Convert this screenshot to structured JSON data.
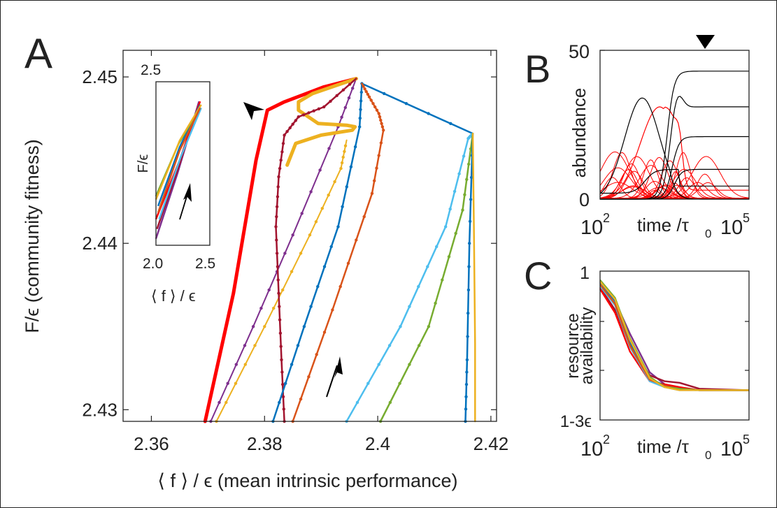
{
  "panel_labels": {
    "a": "A",
    "b": "B",
    "c": "C"
  },
  "chart_data": [
    {
      "panel": "A",
      "type": "line",
      "xlabel": "⟨ f ⟩ / ϵ (mean intrinsic performance)",
      "ylabel": "F/ϵ (community fitness)",
      "xlim": [
        2.355,
        2.421
      ],
      "ylim": [
        2.4293,
        2.4516
      ],
      "xticks": [
        2.36,
        2.38,
        2.4,
        2.42
      ],
      "xtick_labels": [
        "2.36",
        "2.38",
        "2.4",
        "2.42"
      ],
      "yticks": [
        2.43,
        2.44,
        2.45
      ],
      "ytick_labels": [
        "2.43",
        "2.44",
        "2.45"
      ],
      "grid": false,
      "annotations": [
        "arrowhead marker near the red trajectory bend",
        "arrow pointing up-right along trajectories"
      ],
      "series": [
        {
          "color": "#ff0000",
          "width": 5,
          "markers": false,
          "x": [
            2.3695,
            2.3745,
            2.3785,
            2.3805,
            2.3835,
            2.3905,
            2.3962
          ],
          "y": [
            2.4293,
            2.437,
            2.445,
            2.448,
            2.4485,
            2.4494,
            2.4499
          ]
        },
        {
          "color": "#7e2f8e",
          "width": 2,
          "markers": true,
          "x": [
            2.3705,
            2.378,
            2.385,
            2.393,
            2.3962
          ],
          "y": [
            2.4293,
            2.435,
            2.4405,
            2.447,
            2.4499
          ]
        },
        {
          "color": "#edb120",
          "width": 2,
          "markers": true,
          "x": [
            2.3715,
            2.38,
            2.388,
            2.3935,
            2.3945
          ],
          "y": [
            2.4293,
            2.435,
            2.4405,
            2.4445,
            2.4462
          ]
        },
        {
          "color": "#edb120",
          "width": 5,
          "markers": false,
          "x": [
            2.384,
            2.3855,
            2.39,
            2.3955,
            2.396,
            2.3945,
            2.3895,
            2.386,
            2.386,
            2.3885,
            2.3962
          ],
          "y": [
            2.4447,
            2.446,
            2.4465,
            2.4468,
            2.447,
            2.4471,
            2.4472,
            2.448,
            2.4485,
            2.449,
            2.4499
          ]
        },
        {
          "color": "#a2142f",
          "width": 2.5,
          "markers": true,
          "x": [
            2.3835,
            2.383,
            2.3825,
            2.382,
            2.3825,
            2.3835,
            2.386,
            2.3905,
            2.3962
          ],
          "y": [
            2.4293,
            2.433,
            2.437,
            2.441,
            2.444,
            2.4465,
            2.4476,
            2.4482,
            2.4499
          ]
        },
        {
          "color": "#0072bd",
          "width": 2.5,
          "markers": true,
          "x": [
            2.3815,
            2.387,
            2.393,
            2.3968,
            2.3972,
            2.4168
          ],
          "y": [
            2.4293,
            2.435,
            2.441,
            2.447,
            2.4496,
            2.4466
          ]
        },
        {
          "color": "#d95319",
          "width": 2.5,
          "markers": true,
          "x": [
            2.385,
            2.392,
            2.399,
            2.401,
            2.4002,
            2.3985,
            2.3972
          ],
          "y": [
            2.4293,
            2.436,
            2.443,
            2.4468,
            2.4478,
            2.4488,
            2.4496
          ]
        },
        {
          "color": "#4dbeee",
          "width": 2.5,
          "markers": true,
          "x": [
            2.3945,
            2.404,
            2.412,
            2.416,
            2.4168
          ],
          "y": [
            2.4293,
            2.435,
            2.441,
            2.4463,
            2.4466
          ]
        },
        {
          "color": "#77ac30",
          "width": 2.5,
          "markers": true,
          "x": [
            2.4005,
            2.409,
            2.415,
            2.4168
          ],
          "y": [
            2.4293,
            2.435,
            2.442,
            2.4466
          ]
        },
        {
          "color": "#0072bd",
          "width": 2.5,
          "markers": true,
          "x": [
            2.4155,
            2.4158,
            2.4162,
            2.4168
          ],
          "y": [
            2.4293,
            2.433,
            2.44,
            2.4466
          ]
        },
        {
          "color": "#edb120",
          "width": 2.5,
          "markers": false,
          "x": [
            2.4172,
            2.4172,
            2.417,
            2.4168
          ],
          "y": [
            2.4293,
            2.434,
            2.441,
            2.4466
          ]
        }
      ],
      "inset": {
        "xlabel": "⟨ f ⟩ / ϵ",
        "ylabel": "F/ϵ",
        "xtick_labels": [
          "2.0",
          "2.5"
        ],
        "ytick_labels": [
          "2.5"
        ],
        "xlim": [
          2.0,
          2.5
        ],
        "ylim": [
          2.0,
          2.5
        ],
        "series": [
          {
            "color": "#7e2f8e",
            "x": [
              2.0,
              2.2,
              2.4
            ],
            "y": [
              2.02,
              2.22,
              2.44
            ]
          },
          {
            "color": "#a2142f",
            "x": [
              2.01,
              2.21,
              2.4
            ],
            "y": [
              2.05,
              2.24,
              2.43
            ]
          },
          {
            "color": "#ff0000",
            "x": [
              2.0,
              2.22,
              2.41
            ],
            "y": [
              2.08,
              2.26,
              2.44
            ]
          },
          {
            "color": "#0072bd",
            "x": [
              2.02,
              2.22,
              2.41
            ],
            "y": [
              2.12,
              2.3,
              2.43
            ]
          },
          {
            "color": "#77ac30",
            "x": [
              2.0,
              2.21,
              2.41
            ],
            "y": [
              2.15,
              2.31,
              2.42
            ]
          },
          {
            "color": "#4dbeee",
            "x": [
              2.03,
              2.23,
              2.42
            ],
            "y": [
              2.08,
              2.27,
              2.42
            ]
          },
          {
            "color": "#edb120",
            "x": [
              2.0,
              2.22,
              2.42
            ],
            "y": [
              2.14,
              2.32,
              2.43
            ]
          },
          {
            "color": "#d95319",
            "x": [
              2.02,
              2.22,
              2.41
            ],
            "y": [
              2.1,
              2.29,
              2.42
            ]
          }
        ]
      }
    },
    {
      "panel": "B",
      "type": "line",
      "xlabel": "time /τ",
      "xlabel_sub": "0",
      "ylabel": "abundance",
      "x_scale": "log",
      "xlim": [
        100,
        100000
      ],
      "xtick_labels": [
        "10",
        "2",
        "10",
        "5"
      ],
      "ylim": [
        0,
        50
      ],
      "ytick_labels": [
        "0",
        "50"
      ],
      "annotations": [
        "arrowhead marker above the axes near t ≈ 8×10^3"
      ],
      "black_final_levels": [
        43,
        31,
        21,
        10
      ],
      "series_colors": {
        "established": "#000000",
        "transient": "#ff0000"
      }
    },
    {
      "panel": "C",
      "type": "line",
      "xlabel": "time /τ",
      "xlabel_sub": "0",
      "ylabel_top": "resource",
      "ylabel_bottom": "availability",
      "x_scale": "log",
      "xlim": [
        100,
        100000
      ],
      "xtick_labels": [
        "10",
        "2",
        "10",
        "5"
      ],
      "ytick_labels": [
        "1-3ϵ",
        "1"
      ],
      "ylim": [
        0,
        1
      ],
      "series": [
        {
          "color": "#7e2f8e",
          "x": [
            100,
            200,
            400,
            1000,
            2000,
            4000,
            10000,
            100000
          ],
          "y": [
            0.93,
            0.8,
            0.58,
            0.32,
            0.24,
            0.21,
            0.2,
            0.2
          ]
        },
        {
          "color": "#a2142f",
          "x": [
            100,
            200,
            400,
            1000,
            2000,
            4000,
            10000,
            100000
          ],
          "y": [
            0.89,
            0.74,
            0.5,
            0.3,
            0.26,
            0.25,
            0.21,
            0.2
          ]
        },
        {
          "color": "#ff0000",
          "x": [
            100,
            200,
            400,
            1000,
            2000,
            4000,
            10000,
            100000
          ],
          "y": [
            0.88,
            0.72,
            0.46,
            0.26,
            0.24,
            0.22,
            0.2,
            0.2
          ]
        },
        {
          "color": "#0072bd",
          "x": [
            100,
            200,
            400,
            1000,
            2000,
            4000,
            10000,
            100000
          ],
          "y": [
            0.92,
            0.8,
            0.52,
            0.28,
            0.23,
            0.21,
            0.2,
            0.2
          ]
        },
        {
          "color": "#4dbeee",
          "x": [
            100,
            200,
            400,
            1000,
            2000,
            4000,
            10000,
            100000
          ],
          "y": [
            0.9,
            0.77,
            0.49,
            0.26,
            0.22,
            0.2,
            0.2,
            0.2
          ]
        },
        {
          "color": "#d95319",
          "x": [
            100,
            200,
            400,
            1000,
            2000,
            4000,
            10000,
            100000
          ],
          "y": [
            0.91,
            0.78,
            0.5,
            0.27,
            0.23,
            0.21,
            0.2,
            0.2
          ]
        },
        {
          "color": "#77ac30",
          "x": [
            100,
            200,
            400,
            1000,
            2000,
            4000,
            10000,
            100000
          ],
          "y": [
            0.94,
            0.82,
            0.55,
            0.29,
            0.22,
            0.21,
            0.2,
            0.2
          ]
        },
        {
          "color": "#edb120",
          "x": [
            100,
            200,
            400,
            1000,
            2000,
            4000,
            10000,
            100000
          ],
          "y": [
            0.93,
            0.81,
            0.54,
            0.28,
            0.22,
            0.2,
            0.2,
            0.2
          ]
        }
      ]
    }
  ]
}
